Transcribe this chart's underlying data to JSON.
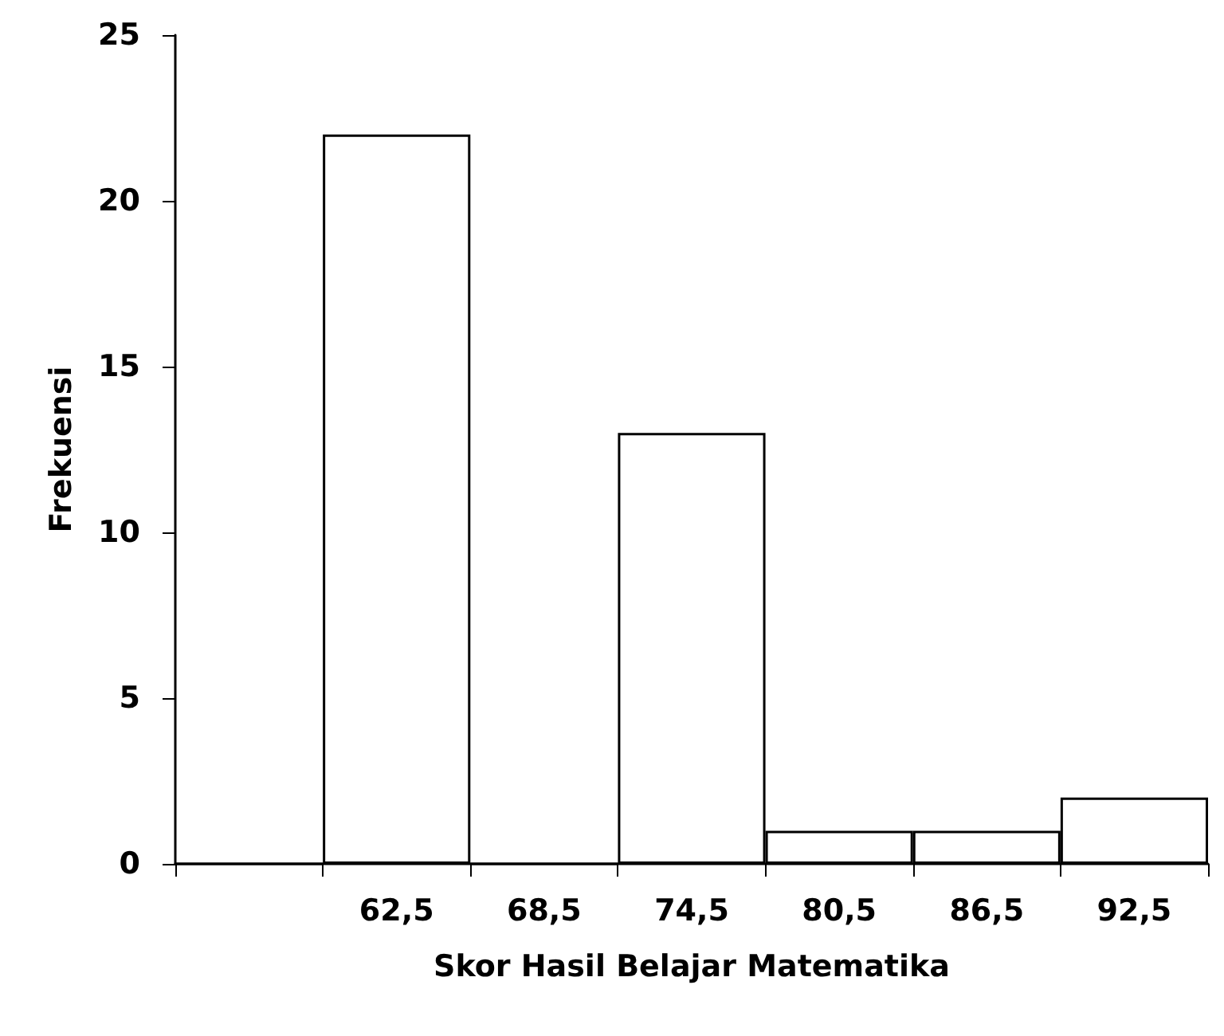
{
  "chart_data": {
    "type": "bar",
    "xlabel": "Skor Hasil Belajar Matematika",
    "ylabel": "Frekuensi",
    "categories": [
      null,
      "62,5",
      "68,5",
      "74,5",
      "80,5",
      "86,5",
      "92,5"
    ],
    "values": [
      0,
      22,
      0,
      13,
      1,
      1,
      2
    ],
    "color": "#ffffff",
    "ylim": [
      0,
      25
    ],
    "yticks": [
      0,
      5,
      10,
      15,
      20,
      25
    ],
    "grid": false
  }
}
